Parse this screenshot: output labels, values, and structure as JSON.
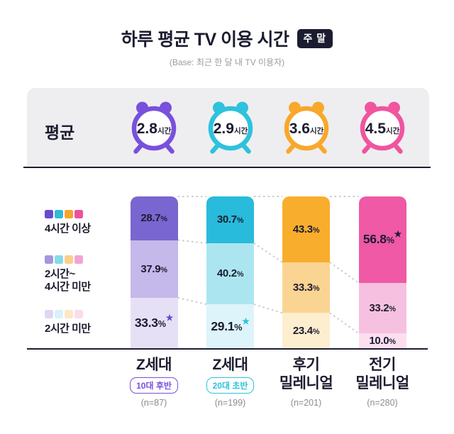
{
  "title": "하루 평균 TV 이용 시간",
  "title_badge": "주 말",
  "subtitle": "(Base: 최근 한 달 내 TV 이용자)",
  "colors": {
    "text": "#1C1C30",
    "band_background": "#EEEEF0",
    "muted_gray": "#8B8B93",
    "connector_gray": "#CBCBCF"
  },
  "average_row": {
    "label": "평균",
    "clocks": [
      {
        "value": "2.8",
        "unit": "시간",
        "color": "#7950DC"
      },
      {
        "value": "2.9",
        "unit": "시간",
        "color": "#2EC2DC"
      },
      {
        "value": "3.6",
        "unit": "시간",
        "color": "#F8A82A"
      },
      {
        "value": "4.5",
        "unit": "시간",
        "color": "#F0559F"
      }
    ]
  },
  "legend": [
    {
      "label": "4시간 이상",
      "swatches": [
        "#6A49D0",
        "#2FBCD6",
        "#F6A52D",
        "#EE509E"
      ]
    },
    {
      "label": "2시간~\n4시간 미만",
      "swatches": [
        "#A695DF",
        "#84DCE8",
        "#F9CF8C",
        "#F2A4D3"
      ]
    },
    {
      "label": "2시간 미만",
      "swatches": [
        "#DFD6F3",
        "#D7F2F8",
        "#FAE7C6",
        "#FADCEC"
      ]
    }
  ],
  "chart_data": {
    "type": "bar",
    "stacked": true,
    "value_unit": "%",
    "ylim": [
      0,
      100
    ],
    "title": "하루 평균 TV 이용 시간 (주말)",
    "categories": [
      {
        "label_lines": [
          "Z세대"
        ],
        "badge": "10대 후반",
        "badge_color": "#7950DC",
        "n_label": "(n=87)"
      },
      {
        "label_lines": [
          "Z세대"
        ],
        "badge": "20대 초반",
        "badge_color": "#2EC2DC",
        "n_label": "(n=199)"
      },
      {
        "label_lines": [
          "후기",
          "밀레니얼"
        ],
        "badge": null,
        "badge_color": null,
        "n_label": "(n=201)"
      },
      {
        "label_lines": [
          "전기",
          "밀레니얼"
        ],
        "badge": null,
        "badge_color": null,
        "n_label": "(n=280)"
      }
    ],
    "series": [
      {
        "name": "4시간 이상",
        "values": [
          28.7,
          30.7,
          43.3,
          56.8
        ]
      },
      {
        "name": "2시간~4시간 미만",
        "values": [
          37.9,
          40.2,
          33.3,
          33.2
        ]
      },
      {
        "name": "2시간 미만",
        "values": [
          33.3,
          29.1,
          23.4,
          10.0
        ]
      }
    ],
    "averages_hours": [
      2.8,
      2.9,
      3.6,
      4.5
    ],
    "bar_colors": [
      [
        "#7A66D0",
        "#C5B8EA",
        "#E6E0F6"
      ],
      [
        "#28BBDB",
        "#ABE6F0",
        "#DDF4FA"
      ],
      [
        "#F9AD2D",
        "#FAD492",
        "#FDEECF"
      ],
      [
        "#EF59A5",
        "#F6C1E0",
        "#FBDFEF"
      ]
    ],
    "highlights": [
      {
        "category": 0,
        "series": 2,
        "star_color": "#6A49D0"
      },
      {
        "category": 1,
        "series": 2,
        "star_color": "#2EC2DC"
      },
      {
        "category": 3,
        "series": 0,
        "star_color": "#1C1C30"
      }
    ]
  }
}
